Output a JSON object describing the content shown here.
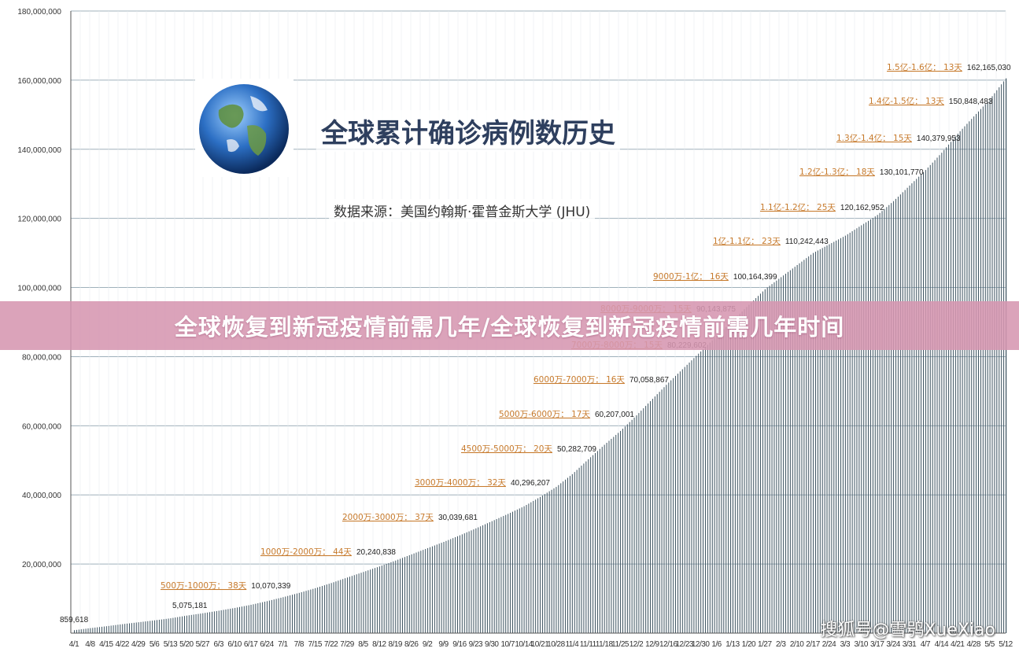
{
  "chart_data": {
    "type": "bar",
    "title": "全球累计确诊病例数历史",
    "source": "数据来源：美国约翰斯·霍普金斯大学 (JHU)",
    "ylim": [
      0,
      180000000
    ],
    "yticks": [
      "180,000,000",
      "160,000,000",
      "140,000,000",
      "120,000,000",
      "100,000,000",
      "80,000,000",
      "60,000,000",
      "40,000,000",
      "20,000,000",
      ""
    ],
    "ytick_values": [
      180000000,
      160000000,
      140000000,
      120000000,
      100000000,
      80000000,
      60000000,
      40000000,
      20000000,
      0
    ],
    "grid": true,
    "x_labels": [
      "4/1",
      "4/8",
      "4/15",
      "4/22",
      "4/29",
      "5/6",
      "5/13",
      "5/20",
      "5/27",
      "6/3",
      "6/10",
      "6/17",
      "6/24",
      "7/1",
      "7/8",
      "7/15",
      "7/22",
      "7/29",
      "8/5",
      "8/12",
      "8/19",
      "8/26",
      "9/2",
      "9/9",
      "9/16",
      "9/23",
      "9/30",
      "10/7",
      "10/14",
      "10/21",
      "10/28",
      "11/4",
      "11/11",
      "11/18",
      "11/25",
      "12/2",
      "12/9",
      "12/16",
      "12/23",
      "12/30",
      "1/6",
      "1/13",
      "1/20",
      "1/27",
      "2/3",
      "2/10",
      "2/17",
      "2/24",
      "3/3",
      "3/10",
      "3/17",
      "3/24",
      "3/31",
      "4/7",
      "4/14",
      "4/21",
      "4/28",
      "5/5",
      "5/12"
    ],
    "values": [
      859618,
      1450000,
      2000000,
      2600000,
      3150000,
      3700000,
      4300000,
      5075181,
      5750000,
      6500000,
      7300000,
      8200000,
      9250000,
      10400000,
      11650000,
      13000000,
      14500000,
      16100000,
      17700000,
      19300000,
      21000000,
      22800000,
      24600000,
      26400000,
      28300000,
      30300000,
      32400000,
      34500000,
      36700000,
      39400000,
      42300000,
      46000000,
      50300000,
      54500000,
      58500000,
      63000000,
      67800000,
      72500000,
      77000000,
      81500000,
      86000000,
      90500000,
      95000000,
      99500000,
      103000000,
      106500000,
      110000000,
      112500000,
      115000000,
      118000000,
      121000000,
      125000000,
      129500000,
      134000000,
      139000000,
      144500000,
      149500000,
      154500000,
      160500000
    ],
    "milestones": [
      {
        "label": "500万-1000万：  38天",
        "value": "10,070,339"
      },
      {
        "label": "1000万-2000万：  44天",
        "value": "20,240,838"
      },
      {
        "label": "2000万-3000万：  37天",
        "value": "30,039,681"
      },
      {
        "label": "3000万-4000万：  32天",
        "value": "40,296,207"
      },
      {
        "label": "4500万-5000万：  20天",
        "value": "50,282,709"
      },
      {
        "label": "5000万-6000万：  17天",
        "value": "60,207,001"
      },
      {
        "label": "6000万-7000万：  16天",
        "value": "70,058,867"
      },
      {
        "label": "7000万-8000万：  15天",
        "value": "80,229,602"
      },
      {
        "label": "8000万-9000万：  15天",
        "value": "90,143,875"
      },
      {
        "label": "9000万-1亿：  16天",
        "value": "100,164,399"
      },
      {
        "label": "1亿-1.1亿：  23天",
        "value": "110,242,443"
      },
      {
        "label": "1.1亿-1.2亿：  25天",
        "value": "120,162,952"
      },
      {
        "label": "1.2亿-1.3亿：  18天",
        "value": "130,101,770"
      },
      {
        "label": "1.3亿-1.4亿：  15天",
        "value": "140,379,953"
      },
      {
        "label": "1.4亿-1.5亿：  13天",
        "value": "150,848,483"
      },
      {
        "label": "1.5亿-1.6亿：  13天",
        "value": "162,165,030"
      }
    ],
    "standalone_labels": [
      "859,618",
      "5,075,181"
    ],
    "bar_color": "#3d5360",
    "label_color": "#c77a2c"
  },
  "banner": "全球恢复到新冠疫情前需几年/全球恢复到新冠疫情前需几年时间",
  "watermark": "搜狐号@雪鸮XueXiao"
}
